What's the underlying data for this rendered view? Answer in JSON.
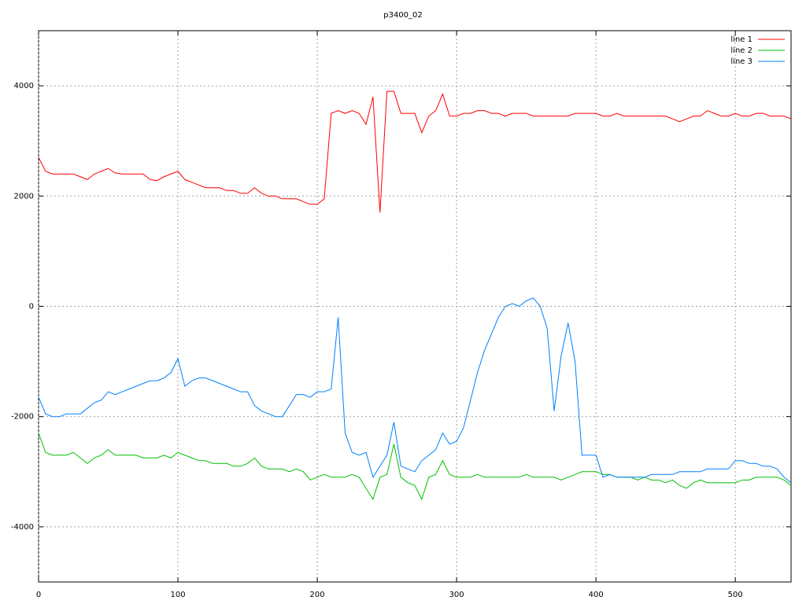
{
  "chart_data": {
    "type": "line",
    "title": "p3400_02",
    "x": [
      0,
      5,
      10,
      15,
      20,
      25,
      30,
      35,
      40,
      45,
      50,
      55,
      60,
      65,
      70,
      75,
      80,
      85,
      90,
      95,
      100,
      105,
      110,
      115,
      120,
      125,
      130,
      135,
      140,
      145,
      150,
      155,
      160,
      165,
      170,
      175,
      180,
      185,
      190,
      195,
      200,
      205,
      210,
      215,
      220,
      225,
      230,
      235,
      240,
      245,
      250,
      255,
      260,
      265,
      270,
      275,
      280,
      285,
      290,
      295,
      300,
      305,
      310,
      315,
      320,
      325,
      330,
      335,
      340,
      345,
      350,
      355,
      360,
      365,
      370,
      375,
      380,
      385,
      390,
      395,
      400,
      405,
      410,
      415,
      420,
      425,
      430,
      435,
      440,
      445,
      450,
      455,
      460,
      465,
      470,
      475,
      480,
      485,
      490,
      495,
      500,
      505,
      510,
      515,
      520,
      525,
      530,
      535,
      540
    ],
    "series": [
      {
        "name": "line 1",
        "color": "#ff0000",
        "values": [
          2700,
          2450,
          2400,
          2400,
          2400,
          2400,
          2350,
          2300,
          2400,
          2450,
          2500,
          2420,
          2400,
          2400,
          2400,
          2400,
          2300,
          2280,
          2350,
          2400,
          2450,
          2300,
          2250,
          2200,
          2150,
          2150,
          2150,
          2100,
          2100,
          2050,
          2050,
          2150,
          2050,
          2000,
          2000,
          1950,
          1950,
          1950,
          1900,
          1850,
          1850,
          1950,
          3500,
          3550,
          3500,
          3550,
          3500,
          3300,
          3800,
          1700,
          3900,
          3900,
          3500,
          3500,
          3500,
          3150,
          3450,
          3550,
          3850,
          3450,
          3450,
          3500,
          3500,
          3550,
          3550,
          3500,
          3500,
          3450,
          3500,
          3500,
          3500,
          3450,
          3450,
          3450,
          3450,
          3450,
          3450,
          3500,
          3500,
          3500,
          3500,
          3450,
          3450,
          3500,
          3450,
          3450,
          3450,
          3450,
          3450,
          3450,
          3450,
          3400,
          3350,
          3400,
          3450,
          3450,
          3550,
          3500,
          3450,
          3450,
          3500,
          3450,
          3450,
          3500,
          3500,
          3450,
          3450,
          3450,
          3400
        ]
      },
      {
        "name": "line 2",
        "color": "#00c000",
        "values": [
          -2300,
          -2650,
          -2700,
          -2700,
          -2700,
          -2650,
          -2750,
          -2850,
          -2750,
          -2700,
          -2600,
          -2700,
          -2700,
          -2700,
          -2700,
          -2750,
          -2750,
          -2750,
          -2700,
          -2750,
          -2650,
          -2700,
          -2750,
          -2800,
          -2800,
          -2850,
          -2850,
          -2850,
          -2900,
          -2900,
          -2850,
          -2750,
          -2900,
          -2950,
          -2950,
          -2950,
          -3000,
          -2950,
          -3000,
          -3150,
          -3100,
          -3050,
          -3100,
          -3100,
          -3100,
          -3050,
          -3100,
          -3300,
          -3500,
          -3100,
          -3050,
          -2500,
          -3100,
          -3200,
          -3250,
          -3500,
          -3100,
          -3050,
          -2800,
          -3050,
          -3100,
          -3100,
          -3100,
          -3050,
          -3100,
          -3100,
          -3100,
          -3100,
          -3100,
          -3100,
          -3050,
          -3100,
          -3100,
          -3100,
          -3100,
          -3150,
          -3100,
          -3050,
          -3000,
          -3000,
          -3000,
          -3050,
          -3050,
          -3100,
          -3100,
          -3100,
          -3150,
          -3100,
          -3150,
          -3150,
          -3200,
          -3150,
          -3250,
          -3300,
          -3200,
          -3150,
          -3200,
          -3200,
          -3200,
          -3200,
          -3200,
          -3150,
          -3150,
          -3100,
          -3100,
          -3100,
          -3100,
          -3150,
          -3250
        ]
      },
      {
        "name": "line 3",
        "color": "#0080ff",
        "values": [
          -1650,
          -1950,
          -2000,
          -2000,
          -1950,
          -1950,
          -1950,
          -1850,
          -1750,
          -1700,
          -1550,
          -1600,
          -1550,
          -1500,
          -1450,
          -1400,
          -1350,
          -1350,
          -1300,
          -1200,
          -950,
          -1450,
          -1350,
          -1300,
          -1300,
          -1350,
          -1400,
          -1450,
          -1500,
          -1550,
          -1550,
          -1800,
          -1900,
          -1950,
          -2000,
          -2000,
          -1800,
          -1600,
          -1600,
          -1650,
          -1550,
          -1550,
          -1500,
          -200,
          -2300,
          -2650,
          -2700,
          -2650,
          -3100,
          -2900,
          -2700,
          -2100,
          -2900,
          -2950,
          -3000,
          -2800,
          -2700,
          -2600,
          -2300,
          -2500,
          -2450,
          -2200,
          -1700,
          -1200,
          -800,
          -500,
          -200,
          0,
          50,
          0,
          100,
          150,
          0,
          -400,
          -1900,
          -900,
          -300,
          -1000,
          -2700,
          -2700,
          -2700,
          -3100,
          -3050,
          -3100,
          -3100,
          -3100,
          -3100,
          -3100,
          -3050,
          -3050,
          -3050,
          -3050,
          -3000,
          -3000,
          -3000,
          -3000,
          -2950,
          -2950,
          -2950,
          -2950,
          -2800,
          -2800,
          -2850,
          -2850,
          -2900,
          -2900,
          -2950,
          -3100,
          -3200
        ]
      }
    ],
    "xlim": [
      0,
      540
    ],
    "xticks": [
      0,
      100,
      200,
      300,
      400,
      500
    ],
    "ylim": [
      -5000,
      5000
    ],
    "yticks": [
      -4000,
      -2000,
      0,
      2000,
      4000
    ],
    "grid": true,
    "legend": "top-right"
  }
}
